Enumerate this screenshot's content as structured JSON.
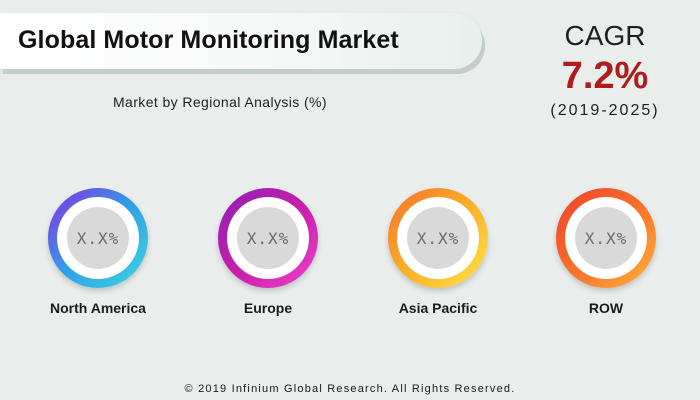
{
  "header": {
    "title": "Global Motor Monitoring Market",
    "subtitle": "Market by Regional Analysis (%)"
  },
  "cagr": {
    "label": "CAGR",
    "value": "7.2%",
    "period": "(2019-2025)"
  },
  "chart_data": {
    "type": "table",
    "title": "Global Motor Monitoring Market",
    "subtitle": "Market by Regional Analysis (%)",
    "categories": [
      "North America",
      "Europe",
      "Asia Pacific",
      "ROW"
    ],
    "values": [
      "X.X%",
      "X.X%",
      "X.X%",
      "X.X%"
    ]
  },
  "regions": [
    {
      "name": "North America",
      "value": "X.X%",
      "gradient": [
        "#8a2be2",
        "#2fa0e8",
        "#3fd8e0"
      ]
    },
    {
      "name": "Europe",
      "value": "X.X%",
      "gradient": [
        "#8a1fb8",
        "#c81fa8",
        "#ee40c8"
      ]
    },
    {
      "name": "Asia Pacific",
      "value": "X.X%",
      "gradient": [
        "#f5702a",
        "#f9b02a",
        "#ffe54a"
      ]
    },
    {
      "name": "ROW",
      "value": "X.X%",
      "gradient": [
        "#f0402a",
        "#f7702a",
        "#ffb33a"
      ]
    }
  ],
  "footer": {
    "copyright": "© 2019 Infinium Global Research. All Rights Reserved."
  }
}
